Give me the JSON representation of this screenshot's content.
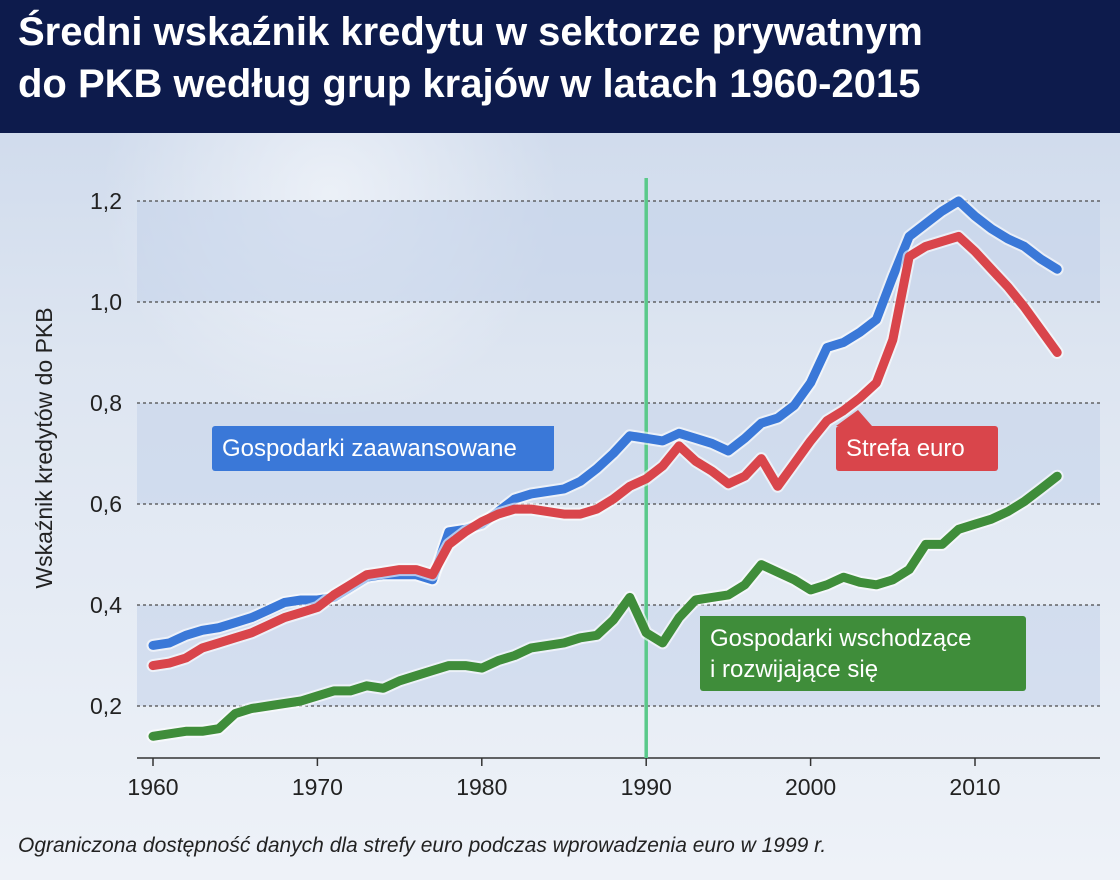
{
  "title": {
    "line1": "Średni wskaźnik kredytu w sektorze prywatnym",
    "line2": "do PKB według grup krajów w latach 1960-2015"
  },
  "footnote": "Ograniczona dostępność danych dla strefy euro podczas wprowadzenia euro w 1999 r.",
  "colors": {
    "advanced": "#3a78d8",
    "euro": "#d9454b",
    "emerging": "#3f8d3a",
    "marker": "#5ac98a",
    "header": "#0d1b4c"
  },
  "chart_data": {
    "type": "line",
    "ylabel": "Wskaźnik kredytów do PKB",
    "xlabel": "",
    "xlim": [
      1960,
      2017
    ],
    "ylim": [
      0.1,
      1.25
    ],
    "xticks": [
      "1960",
      "1970",
      "1980",
      "1990",
      "2000",
      "2010"
    ],
    "yticks": [
      "0,2",
      "0,4",
      "0,6",
      "0,8",
      "1,0",
      "1,2"
    ],
    "ytick_values": [
      0.2,
      0.4,
      0.6,
      0.8,
      1.0,
      1.2
    ],
    "xtick_values": [
      1960,
      1970,
      1980,
      1990,
      2000,
      2010
    ],
    "vline_year": 1990,
    "grid": "horizontal-dashed",
    "series": [
      {
        "name": "Gospodarki zaawansowane",
        "color": "#3a78d8",
        "x": [
          1960,
          1961,
          1962,
          1963,
          1964,
          1965,
          1966,
          1967,
          1968,
          1969,
          1970,
          1971,
          1972,
          1973,
          1974,
          1975,
          1976,
          1977,
          1978,
          1979,
          1980,
          1981,
          1982,
          1983,
          1984,
          1985,
          1986,
          1987,
          1988,
          1989,
          1990,
          1991,
          1992,
          1993,
          1994,
          1995,
          1996,
          1997,
          1998,
          1999,
          2000,
          2001,
          2002,
          2003,
          2004,
          2005,
          2006,
          2007,
          2008,
          2009,
          2010,
          2011,
          2012,
          2013,
          2014,
          2015
        ],
        "values": [
          0.32,
          0.325,
          0.34,
          0.35,
          0.355,
          0.365,
          0.375,
          0.39,
          0.405,
          0.41,
          0.41,
          0.415,
          0.435,
          0.455,
          0.46,
          0.46,
          0.46,
          0.45,
          0.545,
          0.55,
          0.56,
          0.585,
          0.61,
          0.62,
          0.625,
          0.63,
          0.645,
          0.67,
          0.7,
          0.735,
          0.73,
          0.725,
          0.74,
          0.73,
          0.72,
          0.705,
          0.73,
          0.76,
          0.77,
          0.795,
          0.84,
          0.91,
          0.92,
          0.94,
          0.965,
          1.05,
          1.13,
          1.155,
          1.18,
          1.2,
          1.17,
          1.145,
          1.125,
          1.11,
          1.085,
          1.065
        ]
      },
      {
        "name": "Strefa euro",
        "color": "#d9454b",
        "x": [
          1960,
          1961,
          1962,
          1963,
          1964,
          1965,
          1966,
          1967,
          1968,
          1969,
          1970,
          1971,
          1972,
          1973,
          1974,
          1975,
          1976,
          1977,
          1978,
          1979,
          1980,
          1981,
          1982,
          1983,
          1984,
          1985,
          1986,
          1987,
          1988,
          1989,
          1990,
          1991,
          1992,
          1993,
          1994,
          1995,
          1996,
          1997,
          1998,
          1999,
          2000,
          2001,
          2002,
          2003,
          2004,
          2005,
          2006,
          2007,
          2008,
          2009,
          2010,
          2011,
          2012,
          2013,
          2014,
          2015
        ],
        "values": [
          0.28,
          0.285,
          0.295,
          0.315,
          0.325,
          0.335,
          0.345,
          0.36,
          0.375,
          0.385,
          0.395,
          0.42,
          0.44,
          0.46,
          0.465,
          0.47,
          0.47,
          0.46,
          0.52,
          0.545,
          0.565,
          0.58,
          0.59,
          0.59,
          0.585,
          0.58,
          0.58,
          0.59,
          0.61,
          0.635,
          0.65,
          0.675,
          0.715,
          0.685,
          0.665,
          0.64,
          0.655,
          0.69,
          0.635,
          0.68,
          0.725,
          0.765,
          0.785,
          0.81,
          0.84,
          0.925,
          1.09,
          1.11,
          1.12,
          1.13,
          1.1,
          1.065,
          1.03,
          0.99,
          0.945,
          0.9
        ]
      },
      {
        "name": "Gospodarki wschodzące i rozwijające się",
        "color": "#3f8d3a",
        "x": [
          1960,
          1961,
          1962,
          1963,
          1964,
          1965,
          1966,
          1967,
          1968,
          1969,
          1970,
          1971,
          1972,
          1973,
          1974,
          1975,
          1976,
          1977,
          1978,
          1979,
          1980,
          1981,
          1982,
          1983,
          1984,
          1985,
          1986,
          1987,
          1988,
          1989,
          1990,
          1991,
          1992,
          1993,
          1994,
          1995,
          1996,
          1997,
          1998,
          1999,
          2000,
          2001,
          2002,
          2003,
          2004,
          2005,
          2006,
          2007,
          2008,
          2009,
          2010,
          2011,
          2012,
          2013,
          2014,
          2015
        ],
        "values": [
          0.14,
          0.145,
          0.15,
          0.15,
          0.155,
          0.185,
          0.195,
          0.2,
          0.205,
          0.21,
          0.22,
          0.23,
          0.23,
          0.24,
          0.235,
          0.25,
          0.26,
          0.27,
          0.28,
          0.28,
          0.275,
          0.29,
          0.3,
          0.315,
          0.32,
          0.325,
          0.335,
          0.34,
          0.37,
          0.415,
          0.345,
          0.325,
          0.375,
          0.41,
          0.415,
          0.42,
          0.44,
          0.48,
          0.465,
          0.45,
          0.43,
          0.44,
          0.455,
          0.445,
          0.44,
          0.45,
          0.47,
          0.52,
          0.52,
          0.55,
          0.56,
          0.57,
          0.585,
          0.605,
          0.63,
          0.655
        ]
      }
    ],
    "labels": {
      "advanced": "Gospodarki zaawansowane",
      "euro": "Strefa euro",
      "emerging_line1": "Gospodarki wschodzące",
      "emerging_line2": "i rozwijające się"
    }
  }
}
